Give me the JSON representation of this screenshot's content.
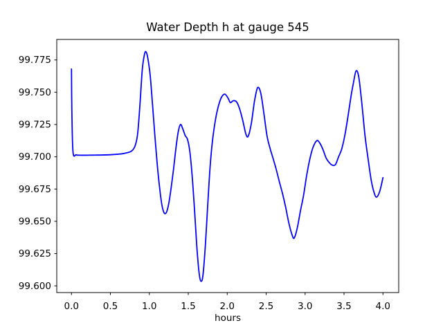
{
  "figure": {
    "background": "#ffffff"
  },
  "chart_data": {
    "type": "line",
    "title": "Water Depth h at gauge 545",
    "xlabel": "hours",
    "ylabel": "",
    "xlim": [
      -0.189,
      4.202
    ],
    "ylim": [
      99.5948,
      99.7909
    ],
    "x_ticks": [
      0.0,
      0.5,
      1.0,
      1.5,
      2.0,
      2.5,
      3.0,
      3.5,
      4.0
    ],
    "x_tick_labels": [
      "0.0",
      "0.5",
      "1.0",
      "1.5",
      "2.0",
      "2.5",
      "3.0",
      "3.5",
      "4.0"
    ],
    "y_ticks": [
      99.6,
      99.625,
      99.65,
      99.675,
      99.7,
      99.725,
      99.75,
      99.775
    ],
    "y_tick_labels": [
      "99.600",
      "99.625",
      "99.650",
      "99.675",
      "99.700",
      "99.725",
      "99.750",
      "99.775"
    ],
    "grid": false,
    "legend": null,
    "series": [
      {
        "name": "Water depth h at gauge 545",
        "color": "#0000ff",
        "line_width": 1.8,
        "x": [
          0.0,
          0.005,
          0.02,
          0.06,
          0.12,
          0.2,
          0.3,
          0.4,
          0.5,
          0.6,
          0.66,
          0.72,
          0.76,
          0.79,
          0.82,
          0.85,
          0.88,
          0.91,
          0.94,
          0.96,
          0.98,
          1.01,
          1.04,
          1.07,
          1.1,
          1.13,
          1.16,
          1.19,
          1.22,
          1.25,
          1.28,
          1.31,
          1.34,
          1.37,
          1.4,
          1.43,
          1.46,
          1.49,
          1.52,
          1.55,
          1.58,
          1.61,
          1.64,
          1.665,
          1.69,
          1.72,
          1.75,
          1.78,
          1.81,
          1.85,
          1.89,
          1.93,
          1.97,
          2.01,
          2.04,
          2.08,
          2.12,
          2.16,
          2.2,
          2.24,
          2.27,
          2.31,
          2.35,
          2.39,
          2.43,
          2.47,
          2.51,
          2.55,
          2.59,
          2.63,
          2.67,
          2.71,
          2.75,
          2.79,
          2.83,
          2.86,
          2.9,
          2.94,
          2.98,
          3.02,
          3.06,
          3.1,
          3.15,
          3.19,
          3.23,
          3.27,
          3.31,
          3.35,
          3.39,
          3.43,
          3.47,
          3.51,
          3.55,
          3.59,
          3.62,
          3.655,
          3.69,
          3.73,
          3.77,
          3.81,
          3.85,
          3.89,
          3.92,
          3.96,
          4.0
        ],
        "y": [
          99.768,
          99.735,
          99.7035,
          99.7015,
          99.7012,
          99.7012,
          99.7013,
          99.7014,
          99.7016,
          99.702,
          99.7024,
          99.7032,
          99.704,
          99.7055,
          99.709,
          99.718,
          99.741,
          99.768,
          99.78,
          99.781,
          99.7765,
          99.7635,
          99.741,
          99.717,
          99.695,
          99.677,
          99.663,
          99.6565,
          99.657,
          99.664,
          99.676,
          99.69,
          99.706,
          99.719,
          99.725,
          99.7215,
          99.7165,
          99.7135,
          99.704,
          99.685,
          99.659,
          99.63,
          99.6095,
          99.6035,
          99.609,
          99.632,
          99.663,
          99.692,
          99.712,
          99.729,
          99.74,
          99.7465,
          99.7485,
          99.7455,
          99.742,
          99.7435,
          99.7425,
          99.737,
          99.728,
          99.7175,
          99.716,
          99.726,
          99.743,
          99.7535,
          99.7495,
          99.734,
          99.7165,
          99.7065,
          99.6985,
          99.69,
          99.6805,
          99.6715,
          99.661,
          99.649,
          99.64,
          99.637,
          99.645,
          99.658,
          99.67,
          99.6855,
          99.698,
          99.707,
          99.7125,
          99.7105,
          99.7055,
          99.699,
          99.6955,
          99.6935,
          99.694,
          99.7,
          99.706,
          99.7165,
          99.731,
          99.747,
          99.757,
          99.7665,
          99.7615,
          99.7405,
          99.716,
          99.698,
          99.6815,
          99.6715,
          99.6688,
          99.6735,
          99.6838
        ]
      }
    ]
  }
}
